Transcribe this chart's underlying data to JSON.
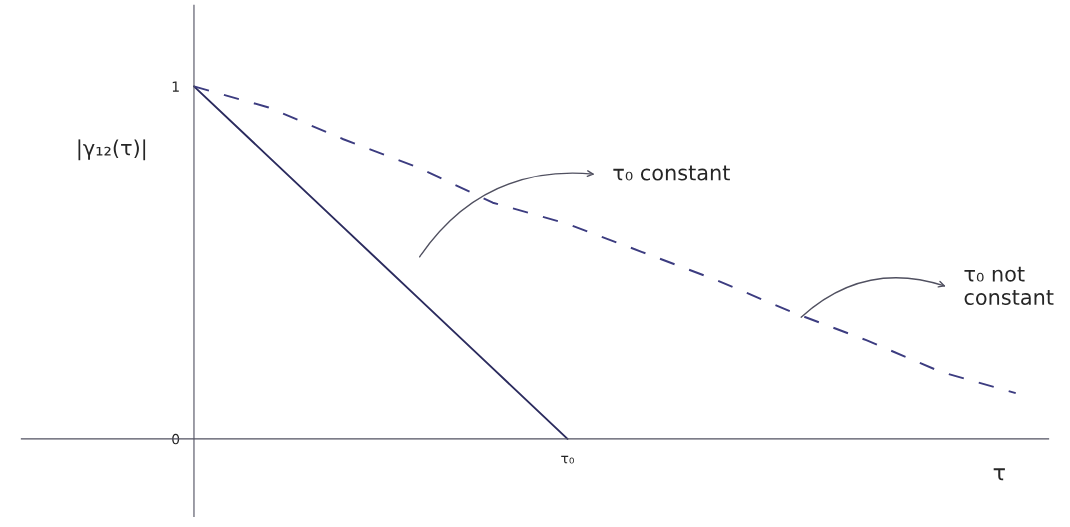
{
  "chart_data": {
    "type": "line",
    "xlabel": "τ",
    "ylabel": "|γ₁₂(τ)|",
    "categories": [
      null,
      null,
      null,
      null,
      null,
      "τ₀",
      null,
      null,
      null,
      null,
      null,
      null
    ],
    "series": [
      {
        "color": "#2b2b5e",
        "line_style": "solid",
        "values": [
          1,
          0.8,
          0.6,
          0.4,
          0.2,
          0,
          null,
          null,
          null,
          null,
          null,
          null
        ]
      },
      {
        "color": "#3c3c80",
        "line_style": "dashed",
        "values": [
          1,
          0.94,
          0.85,
          0.77,
          0.67,
          0.61,
          0.53,
          0.45,
          0.36,
          0.28,
          0.19,
          0.13
        ]
      }
    ],
    "ylim": [
      -0.22,
      1.23
    ],
    "yticks": [
      0,
      1
    ],
    "annotations": [
      "τ₀ constant",
      "τ₀ not\nconstant"
    ]
  }
}
